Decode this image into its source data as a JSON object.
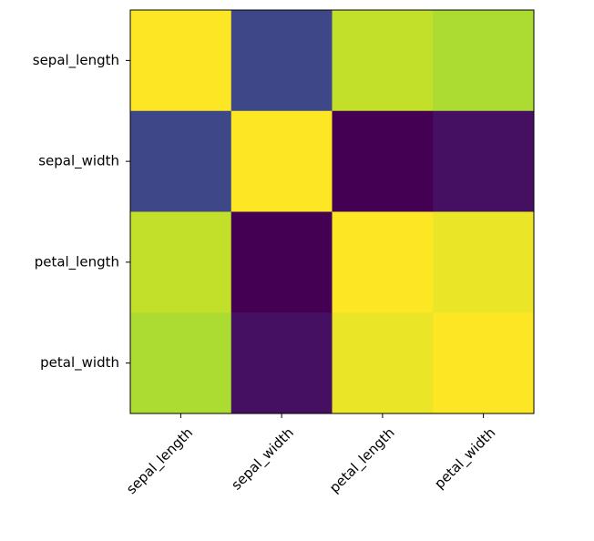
{
  "chart_data": {
    "type": "heatmap",
    "title": "",
    "xlabel": "",
    "ylabel": "",
    "x_categories": [
      "sepal_length",
      "sepal_width",
      "petal_length",
      "petal_width"
    ],
    "y_categories": [
      "sepal_length",
      "sepal_width",
      "petal_length",
      "petal_width"
    ],
    "values": [
      [
        1.0,
        -0.12,
        0.87,
        0.82
      ],
      [
        -0.12,
        1.0,
        -0.43,
        -0.37
      ],
      [
        0.87,
        -0.43,
        1.0,
        0.96
      ],
      [
        0.82,
        -0.37,
        0.96,
        1.0
      ]
    ],
    "colormap": "viridis",
    "x_tick_rotation_deg": 45,
    "grid": false,
    "colorbar": false
  }
}
